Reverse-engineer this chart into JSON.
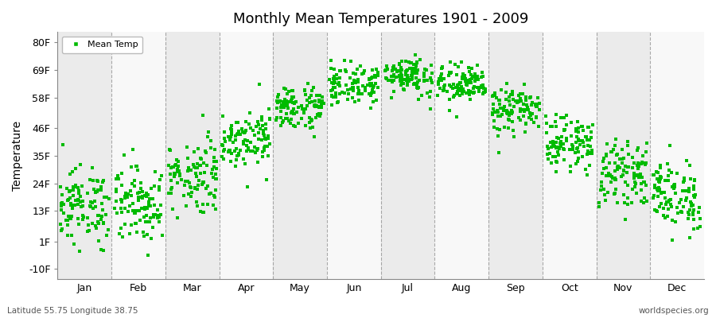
{
  "title": "Monthly Mean Temperatures 1901 - 2009",
  "ylabel": "Temperature",
  "yticks": [
    -10,
    1,
    13,
    24,
    35,
    46,
    58,
    69,
    80
  ],
  "ytick_labels": [
    "-10F",
    "1F",
    "13F",
    "24F",
    "35F",
    "46F",
    "58F",
    "69F",
    "80F"
  ],
  "ylim": [
    -14,
    84
  ],
  "months": [
    "Jan",
    "Feb",
    "Mar",
    "Apr",
    "May",
    "Jun",
    "Jul",
    "Aug",
    "Sep",
    "Oct",
    "Nov",
    "Dec"
  ],
  "dot_color": "#00BB00",
  "dot_size": 6,
  "bg_color_light": "#EBEBEB",
  "bg_color_white": "#F8F8F8",
  "legend_label": "Mean Temp",
  "footer_left": "Latitude 55.75 Longitude 38.75",
  "footer_right": "worldspecies.org",
  "monthly_means_F": [
    15.0,
    16.0,
    27.0,
    42.0,
    54.0,
    63.0,
    67.0,
    63.0,
    53.0,
    40.0,
    28.0,
    19.0
  ],
  "monthly_stds_F": [
    7.5,
    7.5,
    7.5,
    5.5,
    4.5,
    4.0,
    4.0,
    4.0,
    4.5,
    5.0,
    6.0,
    7.0
  ],
  "n_years": 109
}
